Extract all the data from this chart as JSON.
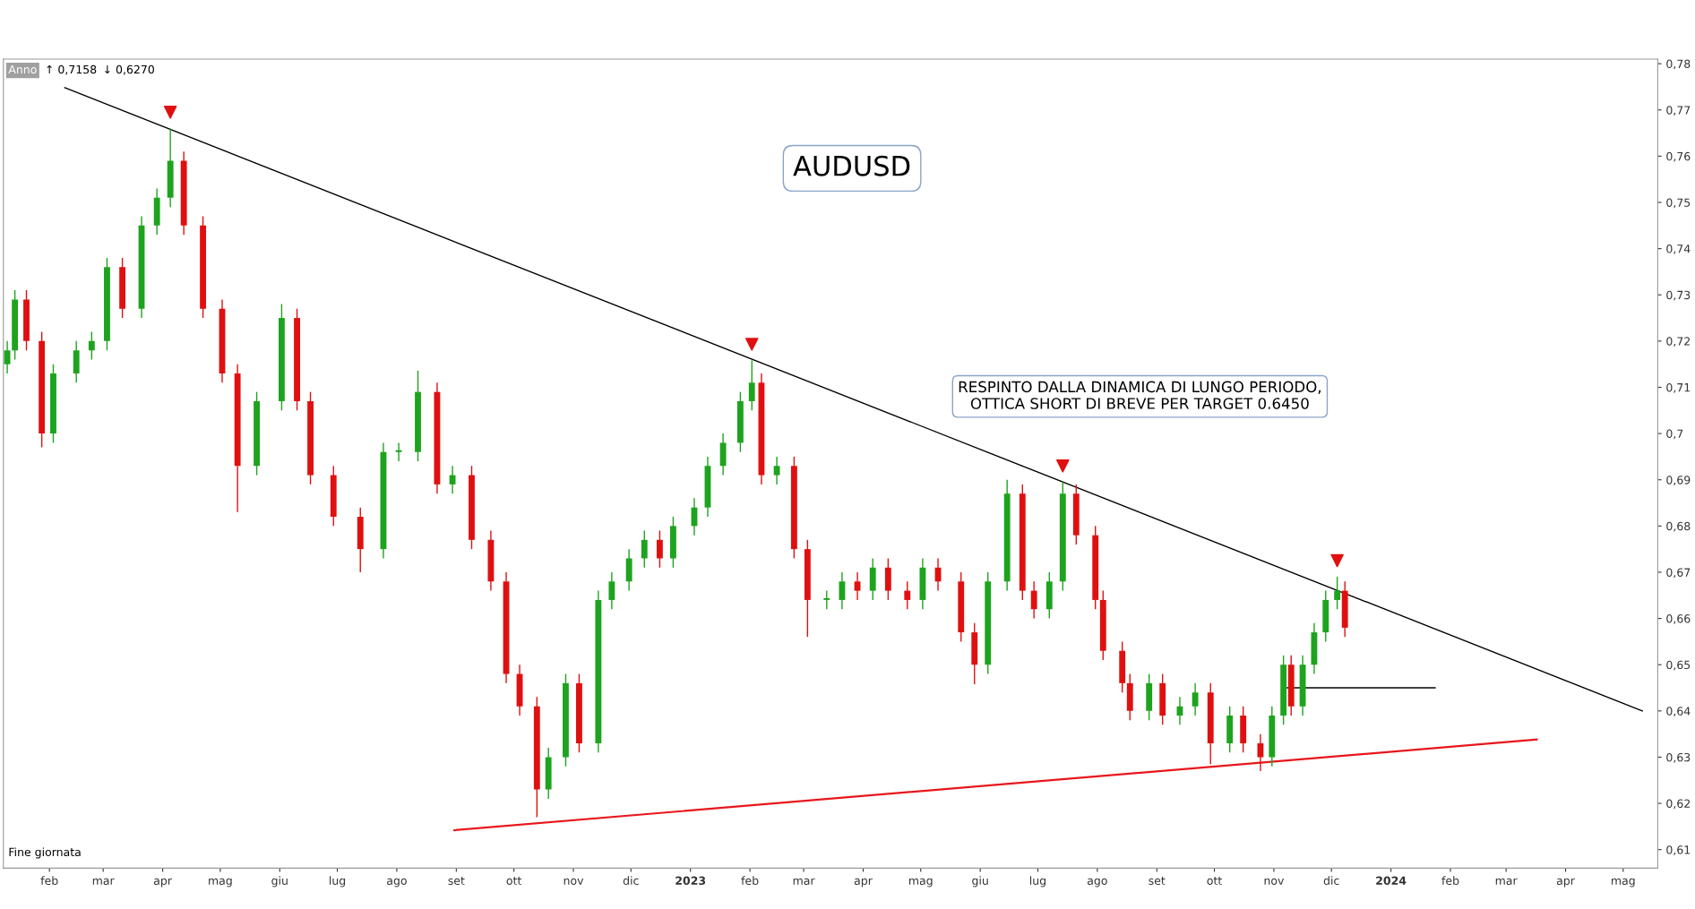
{
  "chart_data": {
    "type": "candlestick",
    "title": "AUDUSD",
    "annotations": [
      "RESPINTO DALLA DINAMICA DI LUNGO PERIODO,\nOTTICA SHORT DI BREVE PER TARGET 0.6450",
      "Anno",
      "↑ 0,7158",
      "↓ 0,6270",
      "Fine giornata"
    ],
    "x": [
      "2022-01-10",
      "2022-01-14",
      "2022-01-20",
      "2022-01-28",
      "2022-02-03",
      "2022-02-15",
      "2022-02-23",
      "2022-03-03",
      "2022-03-11",
      "2022-03-21",
      "2022-03-29",
      "2022-04-05",
      "2022-04-12",
      "2022-04-22",
      "2022-05-02",
      "2022-05-10",
      "2022-05-20",
      "2022-06-02",
      "2022-06-10",
      "2022-06-17",
      "2022-06-29",
      "2022-07-13",
      "2022-07-25",
      "2022-08-02",
      "2022-08-12",
      "2022-08-22",
      "2022-08-30",
      "2022-09-09",
      "2022-09-19",
      "2022-09-27",
      "2022-10-04",
      "2022-10-13",
      "2022-10-19",
      "2022-10-28",
      "2022-11-04",
      "2022-11-14",
      "2022-11-21",
      "2022-11-30",
      "2022-12-08",
      "2022-12-16",
      "2022-12-23",
      "2023-01-03",
      "2023-01-10",
      "2023-01-18",
      "2023-01-27",
      "2023-02-02",
      "2023-02-07",
      "2023-02-15",
      "2023-02-24",
      "2023-03-03",
      "2023-03-13",
      "2023-03-21",
      "2023-03-29",
      "2023-04-06",
      "2023-04-14",
      "2023-04-24",
      "2023-05-02",
      "2023-05-10",
      "2023-05-22",
      "2023-05-29",
      "2023-06-05",
      "2023-06-15",
      "2023-06-23",
      "2023-06-29",
      "2023-07-07",
      "2023-07-14",
      "2023-07-21",
      "2023-07-31",
      "2023-08-04",
      "2023-08-14",
      "2023-08-18",
      "2023-08-28",
      "2023-09-04",
      "2023-09-13",
      "2023-09-21",
      "2023-09-29",
      "2023-10-09",
      "2023-10-16",
      "2023-10-25",
      "2023-10-31",
      "2023-11-06",
      "2023-11-10",
      "2023-11-16",
      "2023-11-22",
      "2023-11-28",
      "2023-12-04",
      "2023-12-08"
    ],
    "ohlc": [
      [
        0.715,
        0.72,
        0.713,
        0.718
      ],
      [
        0.718,
        0.731,
        0.716,
        0.729
      ],
      [
        0.729,
        0.731,
        0.718,
        0.72
      ],
      [
        0.72,
        0.722,
        0.697,
        0.7
      ],
      [
        0.7,
        0.715,
        0.698,
        0.713
      ],
      [
        0.713,
        0.72,
        0.711,
        0.718
      ],
      [
        0.718,
        0.722,
        0.716,
        0.72
      ],
      [
        0.72,
        0.738,
        0.718,
        0.736
      ],
      [
        0.736,
        0.738,
        0.725,
        0.727
      ],
      [
        0.727,
        0.747,
        0.725,
        0.745
      ],
      [
        0.745,
        0.753,
        0.743,
        0.751
      ],
      [
        0.751,
        0.766,
        0.749,
        0.759
      ],
      [
        0.759,
        0.761,
        0.743,
        0.745
      ],
      [
        0.745,
        0.747,
        0.725,
        0.727
      ],
      [
        0.727,
        0.729,
        0.711,
        0.713
      ],
      [
        0.713,
        0.715,
        0.683,
        0.693
      ],
      [
        0.693,
        0.709,
        0.691,
        0.707
      ],
      [
        0.707,
        0.728,
        0.705,
        0.725
      ],
      [
        0.725,
        0.727,
        0.705,
        0.707
      ],
      [
        0.707,
        0.709,
        0.689,
        0.691
      ],
      [
        0.691,
        0.693,
        0.68,
        0.682
      ],
      [
        0.682,
        0.684,
        0.67,
        0.675
      ],
      [
        0.675,
        0.698,
        0.673,
        0.696
      ],
      [
        0.696,
        0.698,
        0.694,
        0.696
      ],
      [
        0.696,
        0.7136,
        0.694,
        0.709
      ],
      [
        0.709,
        0.711,
        0.687,
        0.689
      ],
      [
        0.689,
        0.693,
        0.687,
        0.691
      ],
      [
        0.691,
        0.693,
        0.675,
        0.677
      ],
      [
        0.677,
        0.679,
        0.666,
        0.668
      ],
      [
        0.668,
        0.67,
        0.646,
        0.648
      ],
      [
        0.648,
        0.65,
        0.639,
        0.641
      ],
      [
        0.641,
        0.643,
        0.617,
        0.623
      ],
      [
        0.623,
        0.632,
        0.621,
        0.63
      ],
      [
        0.63,
        0.648,
        0.628,
        0.646
      ],
      [
        0.646,
        0.648,
        0.631,
        0.633
      ],
      [
        0.633,
        0.666,
        0.631,
        0.664
      ],
      [
        0.664,
        0.67,
        0.662,
        0.668
      ],
      [
        0.668,
        0.675,
        0.666,
        0.673
      ],
      [
        0.673,
        0.679,
        0.671,
        0.677
      ],
      [
        0.677,
        0.679,
        0.671,
        0.673
      ],
      [
        0.673,
        0.682,
        0.671,
        0.68
      ],
      [
        0.68,
        0.686,
        0.678,
        0.684
      ],
      [
        0.684,
        0.695,
        0.682,
        0.693
      ],
      [
        0.693,
        0.7,
        0.691,
        0.698
      ],
      [
        0.698,
        0.709,
        0.696,
        0.707
      ],
      [
        0.707,
        0.7158,
        0.705,
        0.711
      ],
      [
        0.711,
        0.713,
        0.689,
        0.691
      ],
      [
        0.691,
        0.695,
        0.689,
        0.693
      ],
      [
        0.693,
        0.695,
        0.673,
        0.675
      ],
      [
        0.675,
        0.677,
        0.656,
        0.664
      ],
      [
        0.664,
        0.666,
        0.662,
        0.664
      ],
      [
        0.664,
        0.67,
        0.662,
        0.668
      ],
      [
        0.668,
        0.67,
        0.664,
        0.666
      ],
      [
        0.666,
        0.673,
        0.664,
        0.671
      ],
      [
        0.671,
        0.673,
        0.664,
        0.666
      ],
      [
        0.666,
        0.668,
        0.662,
        0.664
      ],
      [
        0.664,
        0.673,
        0.662,
        0.671
      ],
      [
        0.671,
        0.673,
        0.666,
        0.668
      ],
      [
        0.668,
        0.67,
        0.655,
        0.657
      ],
      [
        0.657,
        0.659,
        0.6458,
        0.65
      ],
      [
        0.65,
        0.67,
        0.648,
        0.668
      ],
      [
        0.668,
        0.69,
        0.666,
        0.687
      ],
      [
        0.687,
        0.689,
        0.664,
        0.666
      ],
      [
        0.666,
        0.668,
        0.66,
        0.662
      ],
      [
        0.662,
        0.67,
        0.66,
        0.668
      ],
      [
        0.668,
        0.6895,
        0.666,
        0.687
      ],
      [
        0.687,
        0.689,
        0.676,
        0.678
      ],
      [
        0.678,
        0.68,
        0.662,
        0.664
      ],
      [
        0.664,
        0.666,
        0.651,
        0.653
      ],
      [
        0.653,
        0.655,
        0.644,
        0.646
      ],
      [
        0.646,
        0.648,
        0.638,
        0.64
      ],
      [
        0.64,
        0.648,
        0.638,
        0.646
      ],
      [
        0.646,
        0.648,
        0.637,
        0.639
      ],
      [
        0.639,
        0.643,
        0.637,
        0.641
      ],
      [
        0.641,
        0.646,
        0.639,
        0.644
      ],
      [
        0.644,
        0.646,
        0.6285,
        0.633
      ],
      [
        0.633,
        0.641,
        0.631,
        0.639
      ],
      [
        0.639,
        0.641,
        0.631,
        0.633
      ],
      [
        0.633,
        0.635,
        0.627,
        0.63
      ],
      [
        0.63,
        0.641,
        0.628,
        0.639
      ],
      [
        0.639,
        0.652,
        0.637,
        0.65
      ],
      [
        0.65,
        0.652,
        0.639,
        0.641
      ],
      [
        0.641,
        0.652,
        0.639,
        0.65
      ],
      [
        0.65,
        0.659,
        0.648,
        0.657
      ],
      [
        0.657,
        0.666,
        0.655,
        0.664
      ],
      [
        0.664,
        0.669,
        0.662,
        0.666
      ],
      [
        0.666,
        0.668,
        0.656,
        0.658
      ]
    ],
    "series": [
      {
        "type": "line",
        "color": "#000000",
        "x": [
          "2022-02-09",
          "2024-05-11"
        ],
        "values": [
          0.7748,
          0.64
        ]
      },
      {
        "type": "line",
        "color": "#e8161b",
        "x": [
          "2022-08-31",
          "2024-03-17"
        ],
        "values": [
          0.6142,
          0.6338
        ]
      },
      {
        "type": "line",
        "color": "#000000",
        "x": [
          "2023-11-08",
          "2024-01-24"
        ],
        "values": [
          0.645,
          0.645
        ]
      }
    ],
    "xlim": [
      "2022-01-08",
      "2024-05-19"
    ],
    "xticks": [
      {
        "value": "2022-02-01",
        "label": "feb"
      },
      {
        "value": "2022-03-01",
        "label": "mar"
      },
      {
        "value": "2022-04-01",
        "label": "apr"
      },
      {
        "value": "2022-05-01",
        "label": "mag"
      },
      {
        "value": "2022-06-01",
        "label": "giu"
      },
      {
        "value": "2022-07-01",
        "label": "lug"
      },
      {
        "value": "2022-08-01",
        "label": "ago"
      },
      {
        "value": "2022-09-01",
        "label": "set"
      },
      {
        "value": "2022-10-01",
        "label": "ott"
      },
      {
        "value": "2022-11-01",
        "label": "nov"
      },
      {
        "value": "2022-12-01",
        "label": "dic"
      },
      {
        "value": "2023-01-01",
        "label": "2023"
      },
      {
        "value": "2023-02-01",
        "label": "feb"
      },
      {
        "value": "2023-03-01",
        "label": "mar"
      },
      {
        "value": "2023-04-01",
        "label": "apr"
      },
      {
        "value": "2023-05-01",
        "label": "mag"
      },
      {
        "value": "2023-06-01",
        "label": "giu"
      },
      {
        "value": "2023-07-01",
        "label": "lug"
      },
      {
        "value": "2023-08-01",
        "label": "ago"
      },
      {
        "value": "2023-09-01",
        "label": "set"
      },
      {
        "value": "2023-10-01",
        "label": "ott"
      },
      {
        "value": "2023-11-01",
        "label": "nov"
      },
      {
        "value": "2023-12-01",
        "label": "dic"
      },
      {
        "value": "2024-01-01",
        "label": "2024"
      },
      {
        "value": "2024-02-01",
        "label": "feb"
      },
      {
        "value": "2024-03-01",
        "label": "mar"
      },
      {
        "value": "2024-04-01",
        "label": "apr"
      },
      {
        "value": "2024-05-01",
        "label": "mag"
      }
    ],
    "ylim": [
      0.606,
      0.781
    ],
    "yticks": [
      {
        "value": 0.61,
        "label": "0,61"
      },
      {
        "value": 0.62,
        "label": "0,62"
      },
      {
        "value": 0.63,
        "label": "0,63"
      },
      {
        "value": 0.64,
        "label": "0,64"
      },
      {
        "value": 0.65,
        "label": "0,65"
      },
      {
        "value": 0.66,
        "label": "0,66"
      },
      {
        "value": 0.67,
        "label": "0,67"
      },
      {
        "value": 0.68,
        "label": "0,68"
      },
      {
        "value": 0.69,
        "label": "0,69"
      },
      {
        "value": 0.7,
        "label": "0,7"
      },
      {
        "value": 0.71,
        "label": "0,71"
      },
      {
        "value": 0.72,
        "label": "0,72"
      },
      {
        "value": 0.73,
        "label": "0,73"
      },
      {
        "value": 0.74,
        "label": "0,74"
      },
      {
        "value": 0.75,
        "label": "0,75"
      },
      {
        "value": 0.76,
        "label": "0,76"
      },
      {
        "value": 0.77,
        "label": "0,77"
      },
      {
        "value": 0.78,
        "label": "0,78"
      }
    ],
    "grid": false
  }
}
